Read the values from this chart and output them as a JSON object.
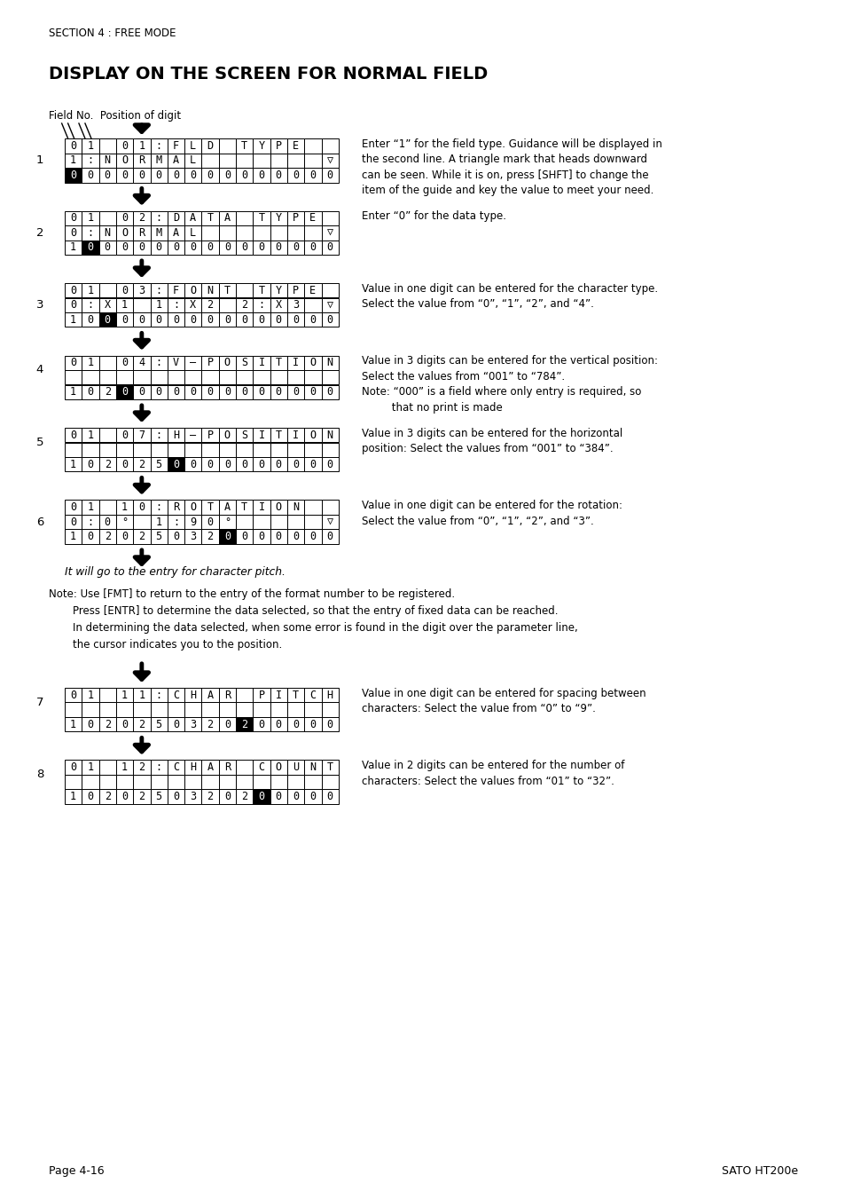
{
  "title": "DISPLAY ON THE SCREEN FOR NORMAL FIELD",
  "section": "SECTION 4 : FREE MODE",
  "page_left": "Page 4-16",
  "page_right": "SATO HT200e",
  "bg_color": "#ffffff",
  "note_italic": "It will go to the entry for character pitch.",
  "note_lines": [
    "Note: Use [FMT] to return to the entry of the format number to be registered.",
    "Press [ENTR] to determine the data selected, so that the entry of fixed data can be reached.",
    "In determining the data selected, when some error is found in the digit over the parameter line,",
    "the cursor indicates you to the position."
  ]
}
